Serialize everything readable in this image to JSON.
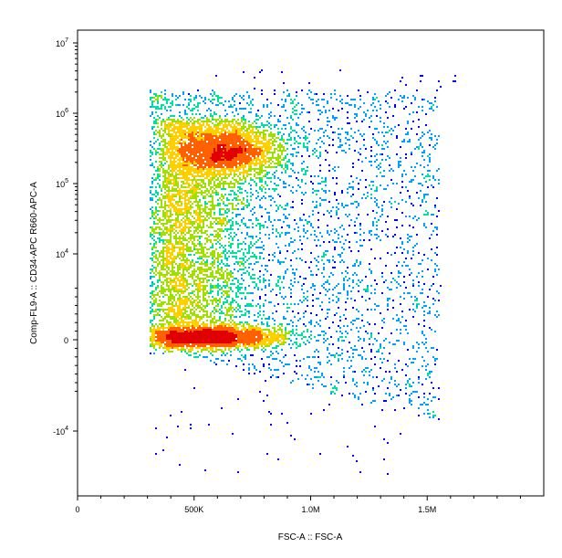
{
  "chart_data": {
    "type": "scatter",
    "style": "density-colored dot plot (flow cytometry)",
    "xlabel": "FSC-A :: FSC-A",
    "ylabel": "Comp-FL9-A :: CD34-APC R660-APC-A",
    "x_scale": "linear",
    "y_scale": "biexponential",
    "xlim": [
      0,
      2000000
    ],
    "x_ticks": [
      {
        "value": 0,
        "label": "0"
      },
      {
        "value": 500000,
        "label": "500K"
      },
      {
        "value": 1000000,
        "label": "1.0M"
      },
      {
        "value": 1500000,
        "label": "1.5M"
      }
    ],
    "y_ticks": [
      {
        "value": 10000000,
        "label": "10",
        "exp": "7"
      },
      {
        "value": 1000000,
        "label": "10",
        "exp": "6"
      },
      {
        "value": 100000,
        "label": "10",
        "exp": "5"
      },
      {
        "value": 10000,
        "label": "10",
        "exp": "4"
      },
      {
        "value": 0,
        "label": "0",
        "exp": ""
      },
      {
        "value": -10000,
        "label": "-10",
        "exp": "4"
      }
    ],
    "populations": [
      {
        "name": "CD34-high",
        "fsc_center": 620000,
        "cd34_center": 300000,
        "density": "high"
      },
      {
        "name": "CD34-negative",
        "fsc_center": 600000,
        "cd34_center": 0,
        "density": "high"
      },
      {
        "name": "scattered",
        "fsc_range": [
          310000,
          1550000
        ],
        "density": "low"
      }
    ],
    "density_colors": [
      "#0000ff",
      "#00a0ff",
      "#00e0a0",
      "#a0e000",
      "#ffd000",
      "#ff6000",
      "#e00000"
    ],
    "grid": false,
    "legend": "none"
  }
}
